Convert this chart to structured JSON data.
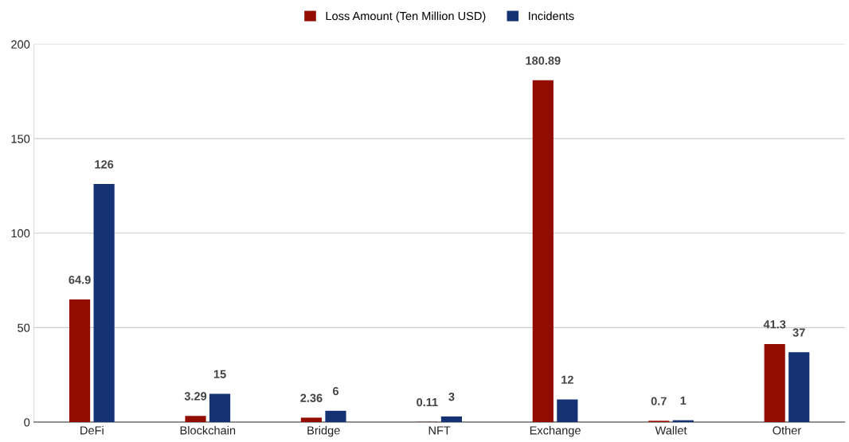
{
  "chart_data": {
    "type": "bar",
    "categories": [
      "DeFi",
      "Blockchain",
      "Bridge",
      "NFT",
      "Exchange",
      "Wallet",
      "Other"
    ],
    "series": [
      {
        "name": "Loss Amount (Ten Million USD)",
        "color": "#920c00",
        "values": [
          64.9,
          3.29,
          2.36,
          0.11,
          180.89,
          0.7,
          41.3
        ]
      },
      {
        "name": "Incidents",
        "color": "#153274",
        "values": [
          126,
          15,
          6,
          3,
          12,
          1,
          37
        ]
      }
    ],
    "ylim": [
      0,
      200
    ],
    "yticks": [
      0,
      50,
      100,
      150,
      200
    ],
    "grid": "y",
    "legend": "top",
    "data_labels": true
  }
}
